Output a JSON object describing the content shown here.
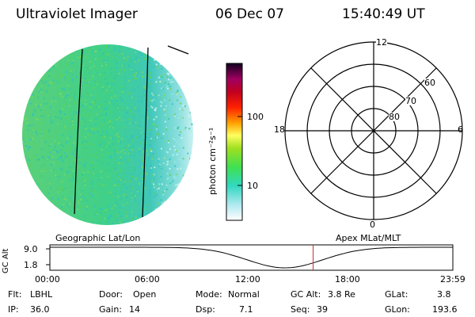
{
  "header": {
    "title": "Ultraviolet Imager",
    "date": "06 Dec 07",
    "time": "15:40:49 UT"
  },
  "colorbar": {
    "label": "photon cm⁻²s⁻¹",
    "ticks": [
      "100",
      "10"
    ]
  },
  "polar_plot": {
    "mlt_labels": {
      "top": "12",
      "left": "18",
      "right": "6",
      "bottom": "0"
    },
    "lat_labels": [
      "60",
      "70",
      "80"
    ]
  },
  "timeline": {
    "left_title": "Geographic Lat/Lon",
    "right_title": "Apex MLat/MLT",
    "ylabel": "GC Alt",
    "y_ticks": [
      "9.0",
      "1.8"
    ],
    "x_ticks": [
      "00:00",
      "06:00",
      "12:00",
      "18:00",
      "23:59"
    ],
    "marker_time_hours": 15.68
  },
  "status": {
    "flt_label": "Flt:",
    "flt_value": "LBHL",
    "door_label": "Door:",
    "door_value": "Open",
    "mode_label": "Mode:",
    "mode_value": "Normal",
    "gcalt_label": "GC Alt:",
    "gcalt_value": "3.8 Re",
    "glat_label": "GLat:",
    "glat_value": "3.8",
    "ip_label": "IP:",
    "ip_value": "36.0",
    "gain_label": "Gain:",
    "gain_value": "14",
    "dsp_label": "Dsp:",
    "dsp_value": "7.1",
    "seq_label": "Seq:",
    "seq_value": "39",
    "glon_label": "GLon:",
    "glon_value": "193.6"
  },
  "colors": {
    "disk_main": "#3fd07a",
    "disk_edge": "#40c8c0",
    "disk_pale": "#bfeef0",
    "marker": "#c83232"
  }
}
